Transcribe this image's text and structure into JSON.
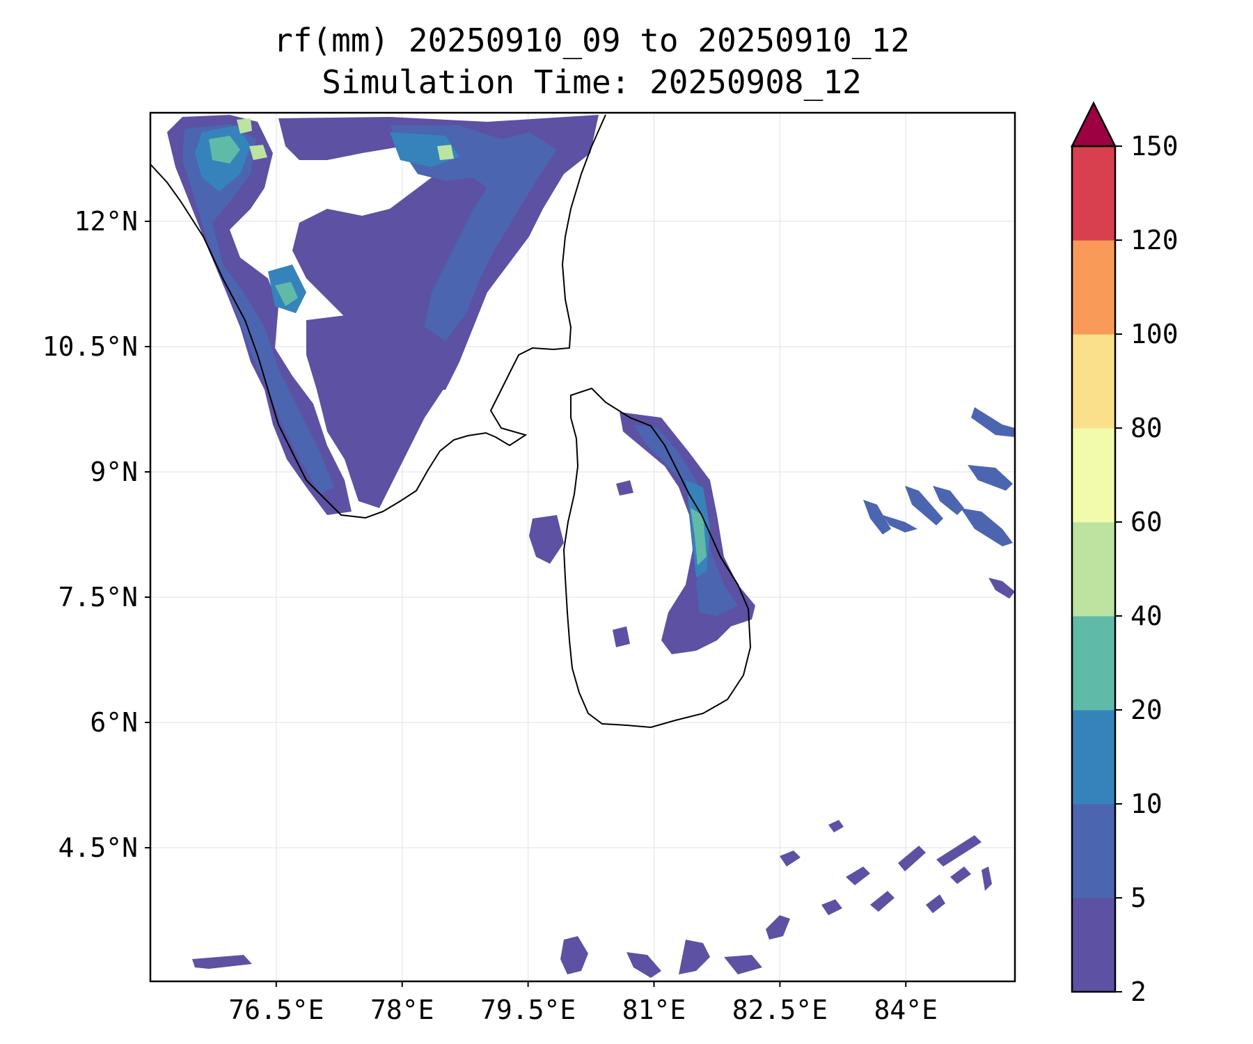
{
  "title": {
    "line1": "rf(mm) 20250910_09 to 20250910_12",
    "line2": "Simulation Time: 20250908_12"
  },
  "map": {
    "lon_range": [
      75.0,
      85.3
    ],
    "lat_range": [
      2.9,
      13.3
    ],
    "lon_ticks": [
      {
        "value": 76.5,
        "label": "76.5°E"
      },
      {
        "value": 78.0,
        "label": "78°E"
      },
      {
        "value": 79.5,
        "label": "79.5°E"
      },
      {
        "value": 81.0,
        "label": "81°E"
      },
      {
        "value": 82.5,
        "label": "82.5°E"
      },
      {
        "value": 84.0,
        "label": "84°E"
      }
    ],
    "lat_ticks": [
      {
        "value": 12.0,
        "label": "12°N"
      },
      {
        "value": 10.5,
        "label": "10.5°N"
      },
      {
        "value": 9.0,
        "label": "9°N"
      },
      {
        "value": 7.5,
        "label": "7.5°N"
      },
      {
        "value": 6.0,
        "label": "6°N"
      },
      {
        "value": 4.5,
        "label": "4.5°N"
      }
    ]
  },
  "colorbar": {
    "levels": [
      {
        "label": "2",
        "value": 2
      },
      {
        "label": "5",
        "value": 5
      },
      {
        "label": "10",
        "value": 10
      },
      {
        "label": "20",
        "value": 20
      },
      {
        "label": "40",
        "value": 40
      },
      {
        "label": "60",
        "value": 60
      },
      {
        "label": "80",
        "value": 80
      },
      {
        "label": "100",
        "value": 100
      },
      {
        "label": "120",
        "value": 120
      },
      {
        "label": "150",
        "value": 150
      }
    ],
    "colors": [
      "#5c51a3",
      "#4c65b0",
      "#3683bb",
      "#5fbaa8",
      "#bce3a0",
      "#f2faac",
      "#fbe08b",
      "#f99a59",
      "#d83f4f"
    ],
    "extend_color": "#9e0142"
  }
}
